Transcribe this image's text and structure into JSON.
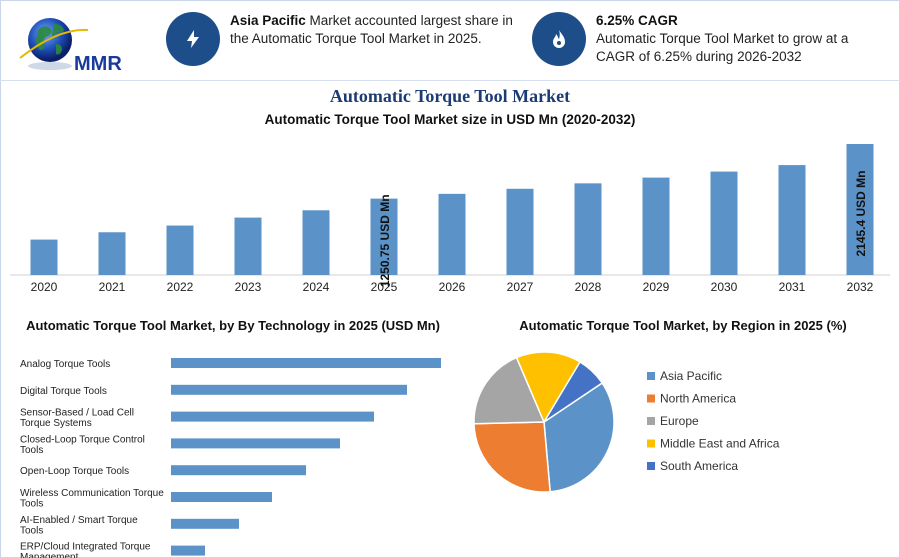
{
  "header": {
    "logo_text": "MMR",
    "stat1": {
      "bold": "Asia Pacific",
      "text": " Market accounted largest share in the Automatic Torque Tool Market in 2025.",
      "icon": "lightning-icon"
    },
    "stat2": {
      "bold": "6.25% CAGR",
      "text": "Automatic Torque Tool Market to grow at a CAGR of 6.25% during 2026-2032",
      "icon": "flame-icon"
    }
  },
  "title": "Automatic Torque Tool Market",
  "colors": {
    "bar": "#5b93c9",
    "hbar": "#5b93c9",
    "title": "#1d3b73",
    "icon_bg": "#1d4e89"
  },
  "chart_data": [
    {
      "type": "bar",
      "title": "Automatic Torque Tool Market size in USD Mn (2020-2032)",
      "categories": [
        "2020",
        "2021",
        "2022",
        "2023",
        "2024",
        "2025",
        "2026",
        "2027",
        "2028",
        "2029",
        "2030",
        "2031",
        "2032"
      ],
      "values": [
        580,
        700,
        810,
        940,
        1060,
        1250.75,
        1329,
        1412,
        1501,
        1595,
        1694,
        1800,
        2145.4
      ],
      "annotations": [
        {
          "category": "2025",
          "label": "1250.75 USD Mn"
        },
        {
          "category": "2032",
          "label": "2145.4 USD Mn"
        }
      ]
    },
    {
      "type": "bar",
      "orientation": "horizontal",
      "title": "Automatic Torque Tool Market, by By Technology in 2025 (USD Mn)",
      "categories": [
        "Analog Torque Tools",
        "Digital Torque Tools",
        "Sensor-Based / Load Cell Torque Systems",
        "Closed-Loop Torque Control Tools",
        "Open-Loop Torque Tools",
        "Wireless Communication Torque Tools",
        "AI-Enabled / Smart Torque Tools",
        "ERP/Cloud Integrated Torque Management"
      ],
      "values": [
        270,
        236,
        203,
        169,
        135,
        101,
        68,
        34
      ]
    },
    {
      "type": "pie",
      "title": "Automatic Torque Tool Market, by Region in 2025 (%)",
      "series": [
        {
          "name": "Asia Pacific",
          "value": 33,
          "color": "#5b93c9"
        },
        {
          "name": "North America",
          "value": 26,
          "color": "#ed7d31"
        },
        {
          "name": "Europe",
          "value": 19,
          "color": "#a5a5a5"
        },
        {
          "name": "Middle East and Africa",
          "value": 15,
          "color": "#ffc000"
        },
        {
          "name": "South America",
          "value": 7,
          "color": "#4472c4"
        }
      ]
    }
  ]
}
